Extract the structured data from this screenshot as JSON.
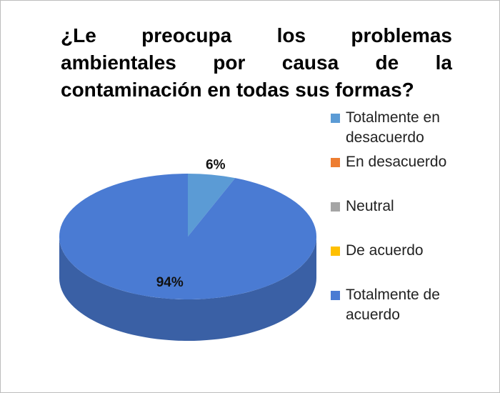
{
  "chart_data": {
    "type": "pie",
    "title": "¿Le preocupa los problemas ambientales por causa de la contaminación en todas sus formas?",
    "categories": [
      "Totalmente en desacuerdo",
      "En desacuerdo",
      "Neutral",
      "De acuerdo",
      "Totalmente de acuerdo"
    ],
    "values": [
      6,
      0,
      0,
      0,
      94
    ],
    "value_labels": [
      "6%",
      null,
      null,
      null,
      "94%"
    ],
    "colors": [
      "#5b9bd5",
      "#ed7d31",
      "#a5a5a5",
      "#ffc000",
      "#4a7bd3"
    ],
    "legend": "right"
  }
}
